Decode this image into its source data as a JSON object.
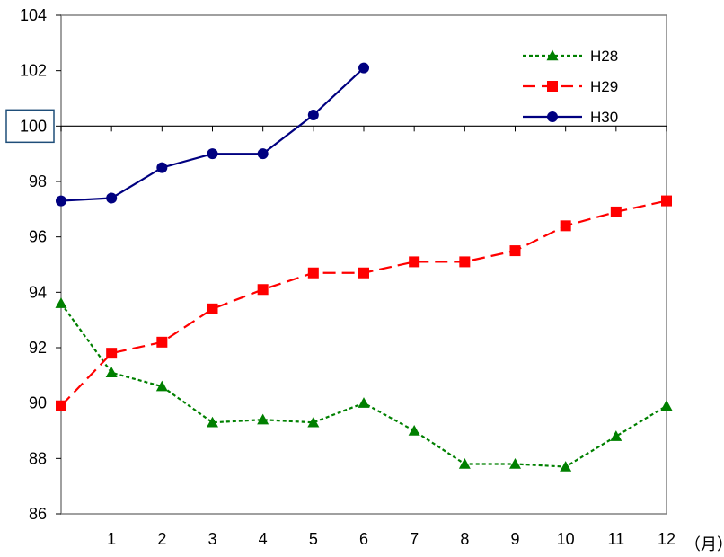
{
  "chart_data": {
    "type": "line",
    "title": "",
    "xlabel": "（月）",
    "ylabel": "",
    "x_min": 0,
    "x_max": 12,
    "categories": [
      "1",
      "2",
      "3",
      "4",
      "5",
      "6",
      "7",
      "8",
      "9",
      "10",
      "11",
      "12"
    ],
    "y_ticks": [
      "86",
      "88",
      "90",
      "92",
      "94",
      "96",
      "98",
      "100",
      "102",
      "104"
    ],
    "y_tick_values": [
      86,
      88,
      90,
      92,
      94,
      96,
      98,
      100,
      102,
      104
    ],
    "ylim": [
      86,
      104
    ],
    "reference_line": 100,
    "highlighted_tick": "100",
    "grid": false,
    "legend_position": "top-right",
    "series": [
      {
        "name": "H28",
        "color": "#008000",
        "marker": "triangle",
        "dash": "dotted",
        "x": [
          0,
          1,
          2,
          3,
          4,
          5,
          6,
          7,
          8,
          9,
          10,
          11,
          12
        ],
        "values": [
          93.6,
          91.1,
          90.6,
          89.3,
          89.4,
          89.3,
          90.0,
          89.0,
          87.8,
          87.8,
          87.7,
          88.8,
          89.9
        ]
      },
      {
        "name": "H29",
        "color": "#ff0000",
        "marker": "square",
        "dash": "dashed",
        "x": [
          0,
          1,
          2,
          3,
          4,
          5,
          6,
          7,
          8,
          9,
          10,
          11,
          12
        ],
        "values": [
          89.9,
          91.8,
          92.2,
          93.4,
          94.1,
          94.7,
          94.7,
          95.1,
          95.1,
          95.5,
          96.4,
          96.9,
          97.3
        ]
      },
      {
        "name": "H30",
        "color": "#000080",
        "marker": "circle",
        "dash": "solid",
        "x": [
          0,
          1,
          2,
          3,
          4,
          5,
          6
        ],
        "values": [
          97.3,
          97.4,
          98.5,
          99.0,
          99.0,
          100.4,
          102.1
        ]
      }
    ]
  }
}
